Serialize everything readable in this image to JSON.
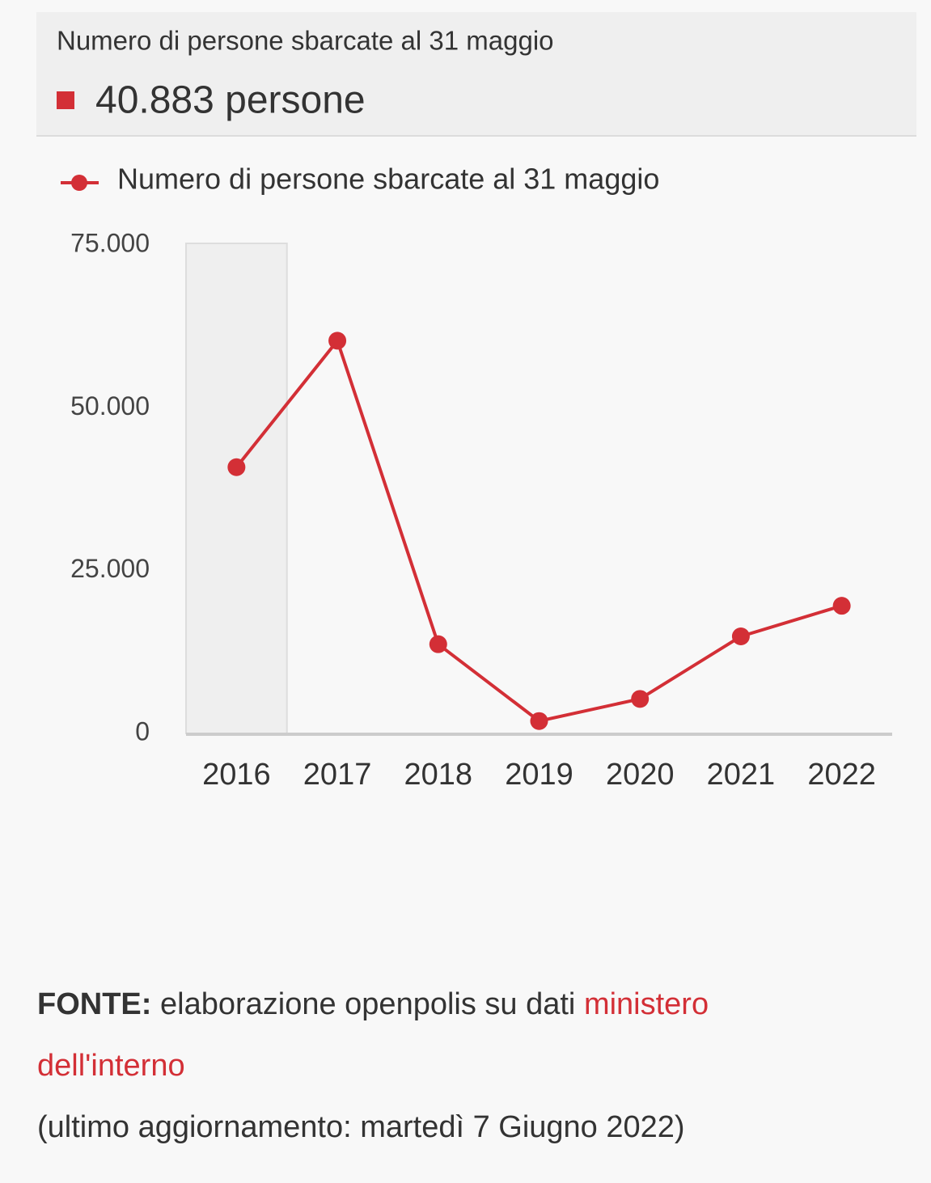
{
  "chart_data": {
    "type": "line",
    "tooltip_label": "40.883 persone",
    "categories": [
      "2016",
      "2017",
      "2018",
      "2019",
      "2020",
      "2021",
      "2022"
    ],
    "series": [
      {
        "name": "Numero di persone sbarcate al 31 maggio",
        "color": "#d32f36",
        "values": [
          40883,
          60300,
          13700,
          1900,
          5300,
          14900,
          19600
        ]
      }
    ],
    "ylim": [
      0,
      75000
    ],
    "yticks": [
      0,
      {
        "value": 25000,
        "label": "25.000"
      },
      {
        "value": 50000,
        "label": "50.000"
      },
      {
        "value": 75000,
        "label": "75.000"
      }
    ],
    "grid": false
  },
  "source": {
    "label": "FONTE:",
    "text": "elaborazione openpolis su dati",
    "link": "ministero dell'interno",
    "updated": "(ultimo aggiornamento: martedì 7 Giugno 2022)"
  }
}
